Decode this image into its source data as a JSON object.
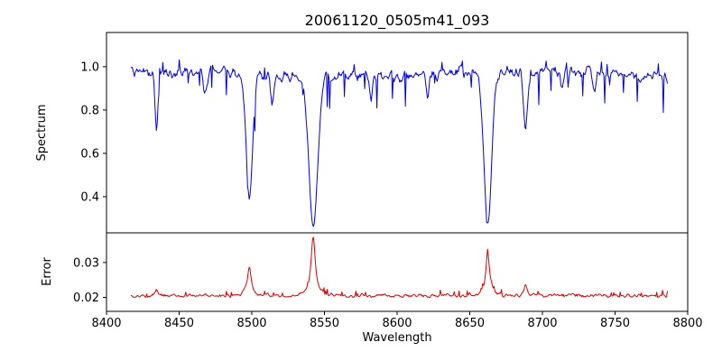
{
  "chart_data": {
    "type": "line",
    "title": "20061120_0505m41_093",
    "xlabel": "Wavelength",
    "xlim": [
      8400,
      8800
    ],
    "xticks": [
      8400,
      8450,
      8500,
      8550,
      8600,
      8650,
      8700,
      8750,
      8800
    ],
    "x_data_range": [
      8417,
      8786
    ],
    "grid": false,
    "legend": "none",
    "seed": 20061120,
    "panels": [
      {
        "name": "spectrum",
        "ylabel": "Spectrum",
        "ylim": [
          0.233,
          1.158
        ],
        "yticks": [
          0.4,
          0.6,
          0.8,
          1.0
        ],
        "ytick_labels": [
          "0.4",
          "0.6",
          "0.8",
          "1.0"
        ],
        "line_color": "#0000dd",
        "continuum": 0.97,
        "noise_amplitude": 0.028,
        "absorption_lines": [
          {
            "center": 8434.5,
            "depth": 0.26,
            "width": 1.0
          },
          {
            "center": 8468.0,
            "depth": 0.1,
            "width": 1.1
          },
          {
            "center": 8498.3,
            "depth": 0.58,
            "width": 2.2
          },
          {
            "center": 8514.0,
            "depth": 0.13,
            "width": 1.1
          },
          {
            "center": 8542.3,
            "depth": 0.7,
            "width": 3.0
          },
          {
            "center": 8582.0,
            "depth": 0.1,
            "width": 1.0
          },
          {
            "center": 8621.0,
            "depth": 0.1,
            "width": 1.0
          },
          {
            "center": 8662.4,
            "depth": 0.69,
            "width": 2.6
          },
          {
            "center": 8688.5,
            "depth": 0.26,
            "width": 1.3
          },
          {
            "center": 8713.0,
            "depth": 0.08,
            "width": 1.0
          },
          {
            "center": 8736.0,
            "depth": 0.08,
            "width": 1.0
          }
        ]
      },
      {
        "name": "error",
        "ylabel": "Error",
        "ylim": [
          0.016,
          0.0385
        ],
        "yticks": [
          0.02,
          0.03
        ],
        "ytick_labels": [
          "0.02",
          "0.03"
        ],
        "line_color": "#dd0000",
        "baseline": 0.0205,
        "noise_amplitude": 0.0005,
        "peaks": [
          {
            "center": 8434.5,
            "height": 0.0018,
            "width": 1.0
          },
          {
            "center": 8498.3,
            "height": 0.0085,
            "width": 1.6
          },
          {
            "center": 8542.3,
            "height": 0.0165,
            "width": 1.8
          },
          {
            "center": 8662.4,
            "height": 0.0125,
            "width": 1.6
          },
          {
            "center": 8688.5,
            "height": 0.003,
            "width": 1.2
          }
        ]
      }
    ]
  }
}
